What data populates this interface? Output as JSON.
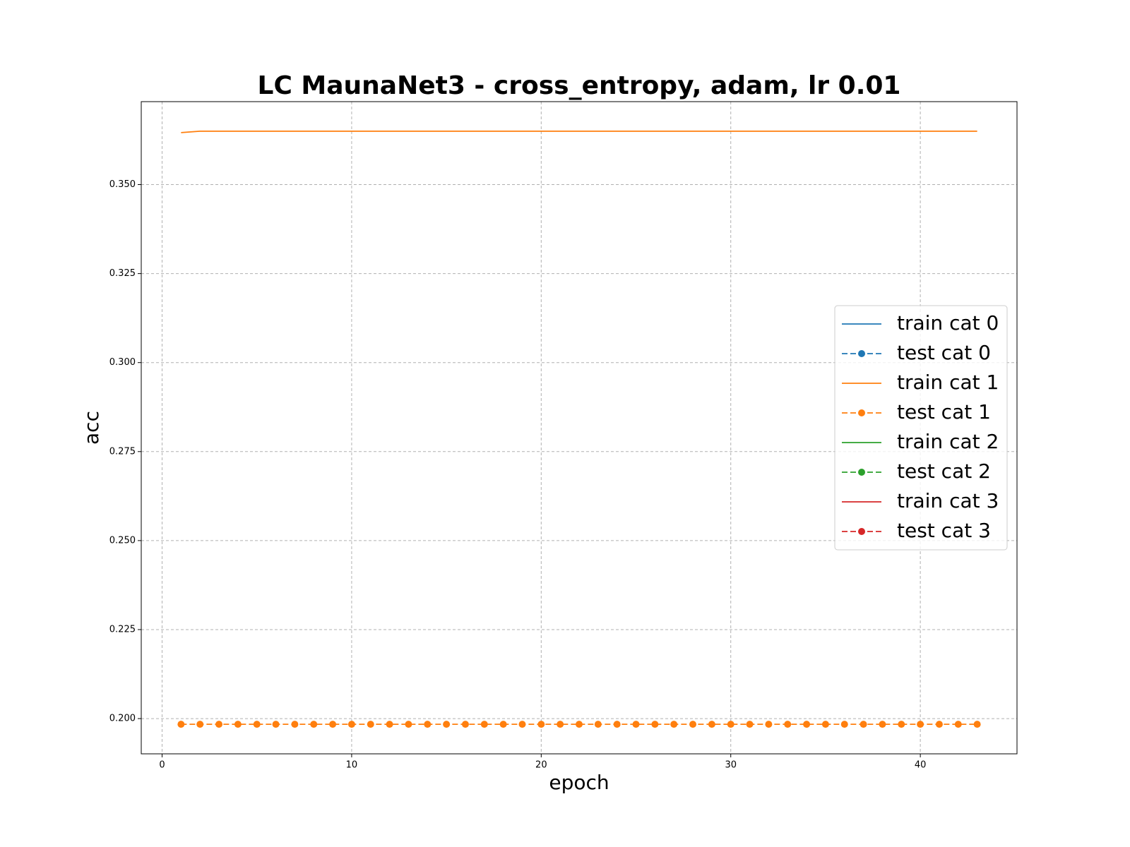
{
  "chart_data": {
    "type": "line",
    "title": "LC MaunaNet3 - cross_entropy, adam, lr 0.01",
    "xlabel": "epoch",
    "ylabel": "acc",
    "x": [
      1,
      2,
      3,
      4,
      5,
      6,
      7,
      8,
      9,
      10,
      11,
      12,
      13,
      14,
      15,
      16,
      17,
      18,
      19,
      20,
      21,
      22,
      23,
      24,
      25,
      26,
      27,
      28,
      29,
      30,
      31,
      32,
      33,
      34,
      35,
      36,
      37,
      38,
      39,
      40,
      41,
      42,
      43
    ],
    "series": [
      {
        "name": "train cat 0",
        "color": "#1f77b4",
        "linestyle": "solid",
        "marker": "none",
        "values": [
          null,
          null,
          null,
          null,
          null,
          null,
          null,
          null,
          null,
          null,
          null,
          null,
          null,
          null,
          null,
          null,
          null,
          null,
          null,
          null,
          null,
          null,
          null,
          null,
          null,
          null,
          null,
          null,
          null,
          null,
          null,
          null,
          null,
          null,
          null,
          null,
          null,
          null,
          null,
          null,
          null,
          null,
          null
        ]
      },
      {
        "name": "test cat 0",
        "color": "#1f77b4",
        "linestyle": "dashed",
        "marker": "circle",
        "values": [
          null,
          null,
          null,
          null,
          null,
          null,
          null,
          null,
          null,
          null,
          null,
          null,
          null,
          null,
          null,
          null,
          null,
          null,
          null,
          null,
          null,
          null,
          null,
          null,
          null,
          null,
          null,
          null,
          null,
          null,
          null,
          null,
          null,
          null,
          null,
          null,
          null,
          null,
          null,
          null,
          null,
          null,
          null
        ]
      },
      {
        "name": "train cat 1",
        "color": "#ff7f0e",
        "linestyle": "solid",
        "marker": "none",
        "values": [
          0.3646,
          0.365,
          0.365,
          0.365,
          0.365,
          0.365,
          0.365,
          0.365,
          0.365,
          0.365,
          0.365,
          0.365,
          0.365,
          0.365,
          0.365,
          0.365,
          0.365,
          0.365,
          0.365,
          0.365,
          0.365,
          0.365,
          0.365,
          0.365,
          0.365,
          0.365,
          0.365,
          0.365,
          0.365,
          0.365,
          0.365,
          0.365,
          0.365,
          0.365,
          0.365,
          0.365,
          0.365,
          0.365,
          0.365,
          0.365,
          0.365,
          0.365,
          0.365
        ]
      },
      {
        "name": "test cat 1",
        "color": "#ff7f0e",
        "linestyle": "dashed",
        "marker": "circle",
        "values": [
          0.1984,
          0.1984,
          0.1984,
          0.1984,
          0.1984,
          0.1984,
          0.1984,
          0.1984,
          0.1984,
          0.1984,
          0.1984,
          0.1984,
          0.1984,
          0.1984,
          0.1984,
          0.1984,
          0.1984,
          0.1984,
          0.1984,
          0.1984,
          0.1984,
          0.1984,
          0.1984,
          0.1984,
          0.1984,
          0.1984,
          0.1984,
          0.1984,
          0.1984,
          0.1984,
          0.1984,
          0.1984,
          0.1984,
          0.1984,
          0.1984,
          0.1984,
          0.1984,
          0.1984,
          0.1984,
          0.1984,
          0.1984,
          0.1984,
          0.1984
        ]
      },
      {
        "name": "train cat 2",
        "color": "#2ca02c",
        "linestyle": "solid",
        "marker": "none",
        "values": [
          null,
          null,
          null,
          null,
          null,
          null,
          null,
          null,
          null,
          null,
          null,
          null,
          null,
          null,
          null,
          null,
          null,
          null,
          null,
          null,
          null,
          null,
          null,
          null,
          null,
          null,
          null,
          null,
          null,
          null,
          null,
          null,
          null,
          null,
          null,
          null,
          null,
          null,
          null,
          null,
          null,
          null,
          null
        ]
      },
      {
        "name": "test cat 2",
        "color": "#2ca02c",
        "linestyle": "dashed",
        "marker": "circle",
        "values": [
          null,
          null,
          null,
          null,
          null,
          null,
          null,
          null,
          null,
          null,
          null,
          null,
          null,
          null,
          null,
          null,
          null,
          null,
          null,
          null,
          null,
          null,
          null,
          null,
          null,
          null,
          null,
          null,
          null,
          null,
          null,
          null,
          null,
          null,
          null,
          null,
          null,
          null,
          null,
          null,
          null,
          null,
          null
        ]
      },
      {
        "name": "train cat 3",
        "color": "#d62728",
        "linestyle": "solid",
        "marker": "none",
        "values": [
          null,
          null,
          null,
          null,
          null,
          null,
          null,
          null,
          null,
          null,
          null,
          null,
          null,
          null,
          null,
          null,
          null,
          null,
          null,
          null,
          null,
          null,
          null,
          null,
          null,
          null,
          null,
          null,
          null,
          null,
          null,
          null,
          null,
          null,
          null,
          null,
          null,
          null,
          null,
          null,
          null,
          null,
          null
        ]
      },
      {
        "name": "test cat 3",
        "color": "#d62728",
        "linestyle": "dashed",
        "marker": "circle",
        "values": [
          null,
          null,
          null,
          null,
          null,
          null,
          null,
          null,
          null,
          null,
          null,
          null,
          null,
          null,
          null,
          null,
          null,
          null,
          null,
          null,
          null,
          null,
          null,
          null,
          null,
          null,
          null,
          null,
          null,
          null,
          null,
          null,
          null,
          null,
          null,
          null,
          null,
          null,
          null,
          null,
          null,
          null,
          null
        ]
      }
    ],
    "xlim": [
      -1.1,
      45.1
    ],
    "xticks": [
      0,
      10,
      20,
      30,
      40
    ],
    "ylim": [
      0.1901,
      0.3733
    ],
    "yticks": [
      {
        "value": 0.2,
        "label": "0.200"
      },
      {
        "value": 0.225,
        "label": "0.225"
      },
      {
        "value": 0.25,
        "label": "0.250"
      },
      {
        "value": 0.275,
        "label": "0.275"
      },
      {
        "value": 0.3,
        "label": "0.300"
      },
      {
        "value": 0.325,
        "label": "0.325"
      },
      {
        "value": 0.35,
        "label": "0.350"
      }
    ],
    "grid": true,
    "legend": "center right"
  }
}
